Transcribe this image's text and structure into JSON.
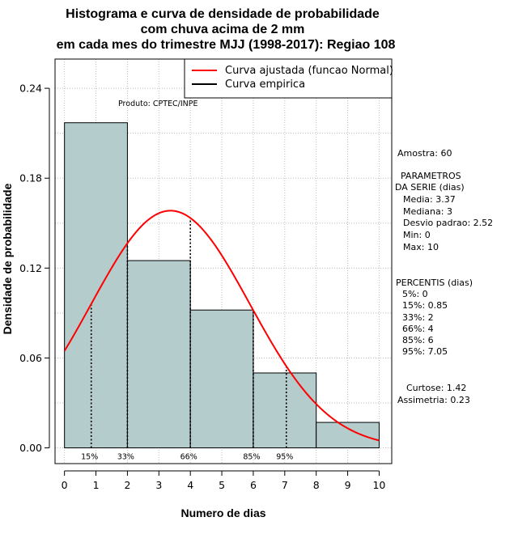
{
  "chart_data": {
    "type": "bar",
    "title": [
      "Histograma e curva de densidade de probabilidade",
      "com chuva acima de 2 mm",
      "em cada mes do trimestre MJJ (1998-2017): Regiao 108"
    ],
    "xlabel": "Numero de dias",
    "ylabel": "Densidade de probabilidade",
    "xlim": [
      -0.3,
      10.4
    ],
    "ylim": [
      -0.0105,
      0.2595
    ],
    "x_ticks": [
      "0",
      "1",
      "2",
      "3",
      "4",
      "5",
      "6",
      "7",
      "8",
      "9",
      "10"
    ],
    "y_ticks": [
      "0.00",
      "0.06",
      "0.12",
      "0.18",
      "0.24"
    ],
    "bins": [
      {
        "start": 0,
        "end": 2,
        "density": 0.217
      },
      {
        "start": 2,
        "end": 4,
        "density": 0.125
      },
      {
        "start": 4,
        "end": 6,
        "density": 0.092
      },
      {
        "start": 6,
        "end": 8,
        "density": 0.05
      },
      {
        "start": 8,
        "end": 10,
        "density": 0.017
      }
    ],
    "fitted_curve": {
      "name": "Curva ajustada (funcao Normal)",
      "mean": 3.37,
      "sd": 2.52,
      "color": "#ff0000"
    },
    "empirical_curve": {
      "name": "Curva empirica",
      "color": "#000000"
    },
    "percentile_markers": [
      {
        "label": "15%",
        "x": 0.85
      },
      {
        "label": "33%",
        "x": 2
      },
      {
        "label": "66%",
        "x": 4
      },
      {
        "label": "85%",
        "x": 6
      },
      {
        "label": "95%",
        "x": 7.05
      }
    ],
    "grid": true,
    "legend_position": "top-right",
    "bar_color": "#b4cccc"
  },
  "annotations": {
    "product": "Produto: CPTEC/INPE",
    "sample": "Amostra: 60",
    "params_header": [
      "PARAMETROS",
      "DA SERIE (dias)"
    ],
    "params": [
      "Media: 3.37",
      "Mediana: 3",
      "Desvio padrao: 2.52",
      "Min: 0",
      "Max: 10"
    ],
    "percentis_header": "PERCENTIS (dias)",
    "percentis": [
      "5%: 0",
      "15%: 0.85",
      "33%: 2",
      "66%: 4",
      "85%: 6",
      "95%: 7.05"
    ],
    "curtose": "Curtose: 1.42",
    "assimetria": "Assimetria: 0.23"
  }
}
